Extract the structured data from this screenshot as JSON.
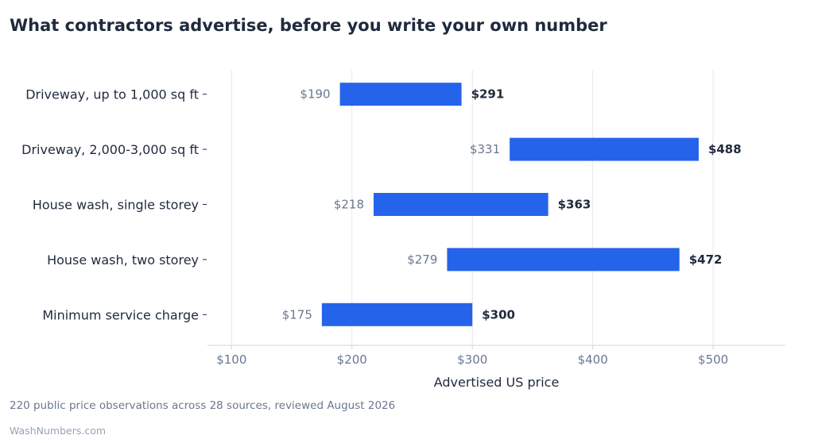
{
  "title": "What contractors advertise, before you write your own number",
  "footnote": "220 public price observations across 28 sources, reviewed August 2026",
  "source": "WashNumbers.com",
  "colors": {
    "bar": "#2563eb",
    "grid": "#e5e7eb",
    "axis": "#cbd5e1"
  },
  "chart_data": {
    "type": "bar",
    "orientation": "horizontal-range",
    "categories": [
      "Driveway, up to 1,000 sq ft",
      "Driveway, 2,000-3,000 sq ft",
      "House wash, single storey",
      "House wash, two storey",
      "Minimum service charge"
    ],
    "low": [
      190,
      331,
      218,
      279,
      175
    ],
    "high": [
      291,
      488,
      363,
      472,
      300
    ],
    "low_labels": [
      "$190",
      "$331",
      "$218",
      "$279",
      "$175"
    ],
    "high_labels": [
      "$291",
      "$488",
      "$363",
      "$472",
      "$300"
    ],
    "xlabel": "Advertised US price",
    "xticks": [
      100,
      200,
      300,
      400,
      500
    ],
    "xtick_labels": [
      "$100",
      "$200",
      "$300",
      "$400",
      "$500"
    ],
    "xlim": [
      80,
      560
    ],
    "grid": true
  }
}
